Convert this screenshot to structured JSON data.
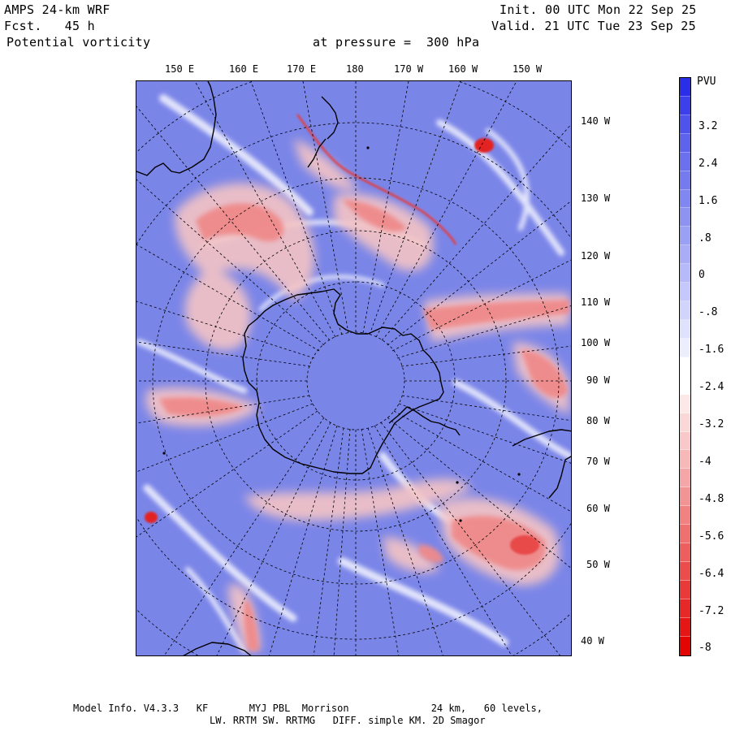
{
  "header": {
    "model": "AMPS 24-km WRF",
    "forecast": "Fcst.   45 h",
    "field": "Potential vorticity",
    "level": "at pressure =  300 hPa",
    "init": "Init. 00 UTC Mon 22 Sep 25",
    "valid": "Valid. 21 UTC Tue 23 Sep 25"
  },
  "top_labels": [
    "150 E",
    "160 E",
    "170 E",
    "180",
    "170 W",
    "160 W",
    "150 W"
  ],
  "right_labels": [
    "140 W",
    "130 W",
    "120 W",
    "110 W",
    "100 W",
    "90 W",
    "80 W",
    "70 W",
    "60 W",
    "50 W",
    "40 W"
  ],
  "colorbar": {
    "unit": "PVU",
    "tick_labels": [
      "3.2",
      "2.4",
      "1.6",
      ".8",
      "0",
      "-.8",
      "-1.6",
      "-2.4",
      "-3.2",
      "-4",
      "-4.8",
      "-5.6",
      "-6.4",
      "-7.2",
      "-8"
    ],
    "colors": [
      "#2a2ee8",
      "#3c40ea",
      "#4e53ec",
      "#5d63ed",
      "#6a70ee",
      "#757bef",
      "#8187f0",
      "#8e93f2",
      "#9aa0f4",
      "#a8adf6",
      "#b6baf8",
      "#c4c8fa",
      "#d2d5fb",
      "#e0e2fd",
      "#eceefe",
      "#ffffff",
      "#ffffff",
      "#fde8e8",
      "#fbd8d8",
      "#f9c8c8",
      "#f7b8b8",
      "#f5a6a6",
      "#f39494",
      "#f18282",
      "#ef7070",
      "#ed5e5e",
      "#eb4c4c",
      "#e93a3a",
      "#e72828",
      "#e51616",
      "#e30404"
    ]
  },
  "map_colors": {
    "background": "#7a85e8",
    "land_line": "#000000",
    "grid_line": "#000000",
    "pv_strong": "#e32020",
    "pv_medium": "#f08c8c",
    "pv_light": "#f8cfcf"
  },
  "footer": {
    "line1": "Model Info. V4.3.3   KF       MYJ PBL  Morrison              24 km,   60 levels,",
    "line2": "LW. RRTM SW. RRTMG   DIFF. simple KM. 2D Smagor"
  }
}
